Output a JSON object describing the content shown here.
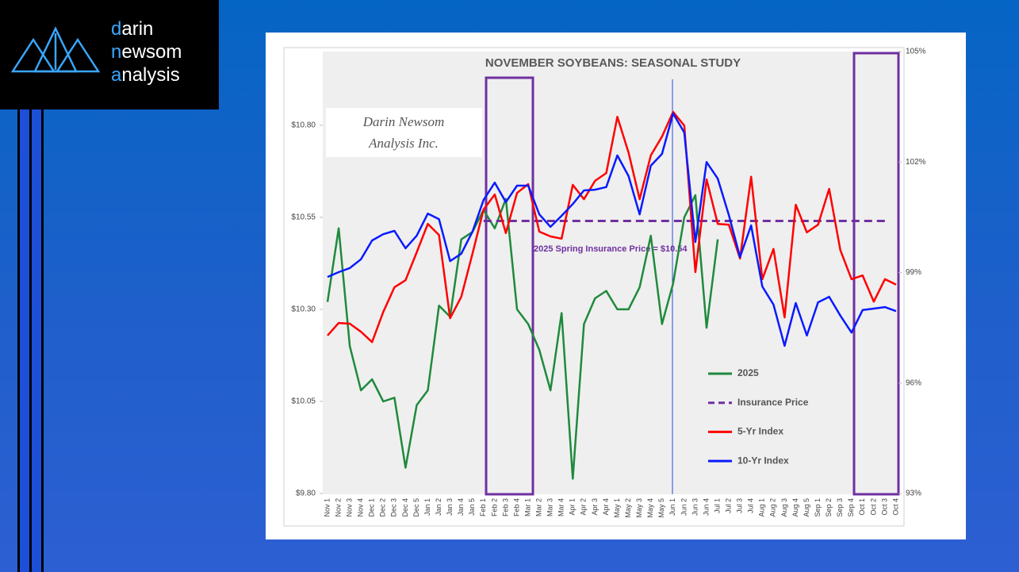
{
  "logo": {
    "lines": [
      {
        "accent": "d",
        "rest": "arin"
      },
      {
        "accent": "n",
        "rest": "ewsom"
      },
      {
        "accent": "a",
        "rest": "nalysis"
      }
    ]
  },
  "chart_data": {
    "type": "line",
    "title": "NOVEMBER SOYBEANS: SEASONAL STUDY",
    "watermark": [
      "Darin Newsom",
      "Analysis Inc."
    ],
    "annotation": "2025 Spring Insurance Price = $10.54",
    "legend": "right",
    "categories": [
      "Nov 1",
      "Nov 2",
      "Nov 3",
      "Nov 4",
      "Dec 1",
      "Dec 2",
      "Dec 3",
      "Dec 4",
      "Dec 5",
      "Jan 1",
      "Jan 2",
      "Jan 3",
      "Jan 4",
      "Jan 5",
      "Feb 1",
      "Feb 2",
      "Feb 3",
      "Feb 4",
      "Mar 1",
      "Mar 2",
      "Mar 3",
      "Mar 4",
      "Apr 1",
      "Apr 2",
      "Apr 3",
      "Apr 4",
      "May 1",
      "May 2",
      "May 3",
      "May 4",
      "May 5",
      "Jun 1",
      "Jun 2",
      "Jun 3",
      "Jun 4",
      "Jul 1",
      "Jul 2",
      "Jul 3",
      "Jul 4",
      "Aug 1",
      "Aug 2",
      "Aug 3",
      "Aug 4",
      "Aug 5",
      "Sep 1",
      "Sep 2",
      "Sep 3",
      "Sep 4",
      "Oct 1",
      "Oct 2",
      "Oct 3",
      "Oct 4"
    ],
    "ylim": [
      9.8,
      11.0
    ],
    "yticks": [
      {
        "value": 9.8,
        "label": "$9.80"
      },
      {
        "value": 10.05,
        "label": "$10.05"
      },
      {
        "value": 10.3,
        "label": "$10.30"
      },
      {
        "value": 10.55,
        "label": "$10.55"
      },
      {
        "value": 10.8,
        "label": "$10.80"
      }
    ],
    "y2lim": [
      93,
      105
    ],
    "y2ticks": [
      {
        "value": 93,
        "label": "93%"
      },
      {
        "value": 96,
        "label": "96%"
      },
      {
        "value": 99,
        "label": "99%"
      },
      {
        "value": 102,
        "label": "102%"
      },
      {
        "value": 105,
        "label": "105%"
      }
    ],
    "series": [
      {
        "name": "2025",
        "color": "#1f8a3c",
        "axis": "y",
        "dashed": false,
        "values": [
          10.32,
          10.52,
          10.2,
          10.08,
          10.11,
          10.05,
          10.06,
          9.87,
          10.04,
          10.08,
          10.31,
          10.28,
          10.49,
          10.51,
          10.57,
          10.52,
          10.6,
          10.3,
          10.26,
          10.19,
          10.08,
          10.29,
          9.84,
          10.26,
          10.33,
          10.35,
          10.3,
          10.3,
          10.36,
          10.5,
          10.26,
          10.37,
          10.55,
          10.61,
          10.25,
          10.49,
          null,
          null,
          null,
          null,
          null,
          null,
          null,
          null,
          null,
          null,
          null,
          null,
          null,
          null,
          null,
          null
        ]
      },
      {
        "name": "Insurance Price",
        "color": "#7030a0",
        "axis": "y",
        "dashed": true,
        "values": [
          null,
          null,
          null,
          null,
          null,
          null,
          null,
          null,
          null,
          null,
          null,
          null,
          null,
          null,
          10.54,
          10.54,
          10.54,
          10.54,
          10.54,
          10.54,
          10.54,
          10.54,
          10.54,
          10.54,
          10.54,
          10.54,
          10.54,
          10.54,
          10.54,
          10.54,
          10.54,
          10.54,
          10.54,
          10.54,
          10.54,
          10.54,
          10.54,
          10.54,
          10.54,
          10.54,
          10.54,
          10.54,
          10.54,
          10.54,
          10.54,
          10.54,
          10.54,
          10.54,
          10.54,
          10.54,
          10.54,
          null
        ]
      },
      {
        "name": "5-Yr Index",
        "color": "#ff0000",
        "axis": "y2",
        "dashed": false,
        "values": [
          97.29,
          97.63,
          97.61,
          97.39,
          97.11,
          97.93,
          98.6,
          98.79,
          99.55,
          100.32,
          100.02,
          97.76,
          98.34,
          99.51,
          100.71,
          101.12,
          100.07,
          101.16,
          101.4,
          100.11,
          99.98,
          99.92,
          101.38,
          100.99,
          101.49,
          101.7,
          103.23,
          102.26,
          100.99,
          102.18,
          102.69,
          103.36,
          102.99,
          99.01,
          101.53,
          100.32,
          100.3,
          99.38,
          101.6,
          98.82,
          99.64,
          97.78,
          100.84,
          100.09,
          100.3,
          101.27,
          99.61,
          98.82,
          98.92,
          98.21,
          98.82,
          98.67
        ]
      },
      {
        "name": "10-Yr Index",
        "color": "#0a1aff",
        "axis": "y2",
        "dashed": false,
        "values": [
          98.88,
          99.01,
          99.12,
          99.36,
          99.87,
          100.04,
          100.13,
          99.66,
          100.0,
          100.6,
          100.45,
          99.31,
          99.51,
          100.11,
          100.97,
          101.44,
          100.91,
          101.36,
          101.36,
          100.58,
          100.24,
          100.54,
          100.86,
          101.23,
          101.25,
          101.32,
          102.18,
          101.62,
          100.58,
          101.9,
          102.22,
          103.32,
          102.8,
          99.83,
          102.0,
          101.55,
          100.56,
          99.42,
          100.28,
          98.62,
          98.13,
          97.01,
          98.17,
          97.29,
          98.19,
          98.34,
          97.83,
          97.37,
          97.98,
          98.02,
          98.06,
          97.95
        ]
      }
    ]
  }
}
